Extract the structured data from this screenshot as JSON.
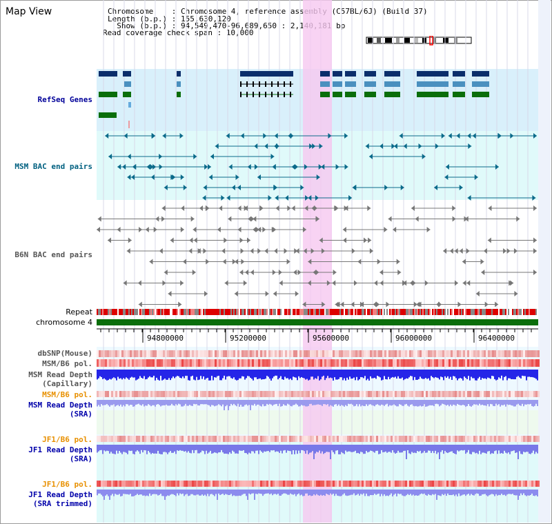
{
  "window": {
    "title": "Map View"
  },
  "info": {
    "chromosome": "Chromosome    : Chromosome 4, reference assembly (C57BL/6J) (Build 37)",
    "length": "Length (b.p.) : 155,630,120",
    "show": "  Show (b.p.) : 94,549,470-96,689,650 : 2,140,181 bp",
    "coverage": "Read coverage check span : 10,000"
  },
  "tracks": {
    "refseq": "RefSeq Genes",
    "msm_bac": "MSM BAC end pairs",
    "b6n_bac": "B6N BAC end pairs",
    "repeat": "Repeat",
    "chromosome": "chromosome 4",
    "dbsnp": "dbSNP(Mouse)",
    "msm_pol": "MSM/B6 pol.",
    "msm_depth_cap": "MSM Read Depth\n(Capillary)",
    "msm_pol2": "MSM/B6 pol.",
    "msm_depth_sra": "MSM Read Depth\n(SRA)",
    "jf1_pol": "JF1/B6 pol.",
    "jf1_depth_sra": "JF1 Read Depth\n(SRA)",
    "jf1_pol2": "JF1/B6 pol.",
    "jf1_depth_trim": "JF1 Read Depth\n(SRA trimmed)"
  },
  "axis": {
    "ticks": [
      "94800000",
      "95200000",
      "95600000",
      "96000000",
      "96400000"
    ]
  },
  "colors": {
    "refseq_bg": "#d9f0fb",
    "msm_bg": "#e0fafa",
    "highlight": "#f6c8f0",
    "gene_navy": "#0b2e6b",
    "gene_blue": "#4a90bf",
    "gene_green": "#0a6e0a",
    "msm_bac": "#0a6a8a",
    "b6n_bac": "#777777",
    "chrom_green": "#0b6e0b",
    "msm_label": "#006080",
    "depth_label": "#0000aa",
    "pol_label": "#e89000",
    "gray_label": "#555555"
  }
}
